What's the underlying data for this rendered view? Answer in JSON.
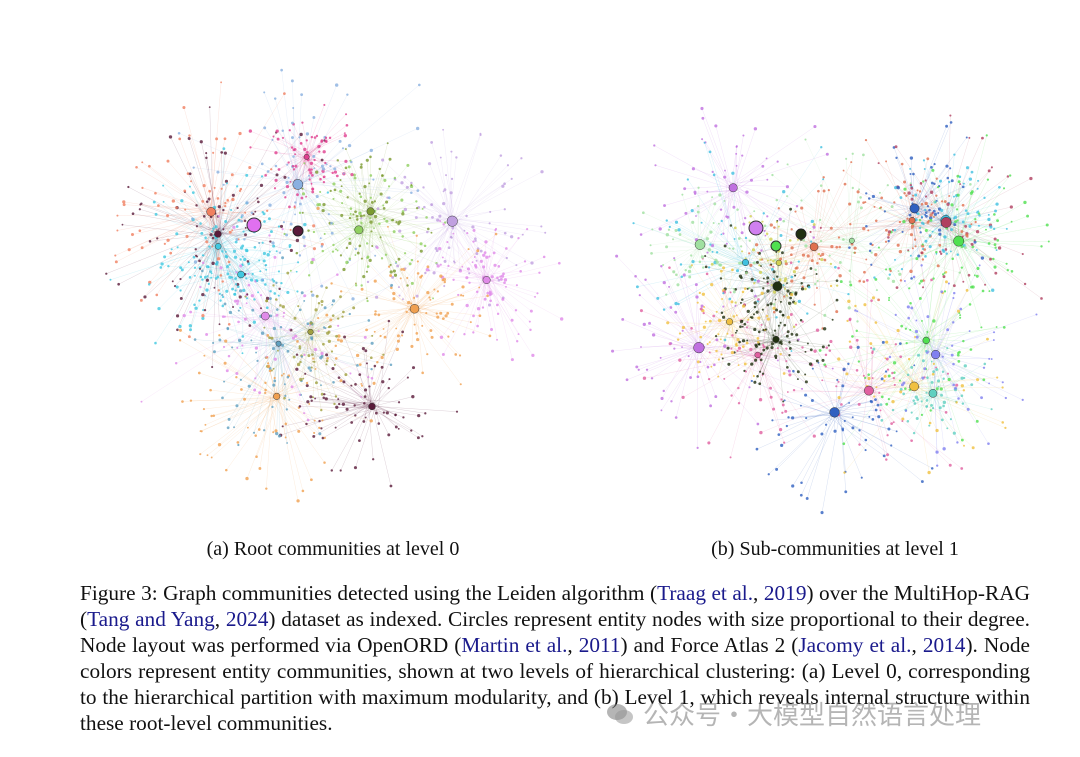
{
  "figure": {
    "subfigures": [
      {
        "caption": "(a) Root communities at level 0"
      },
      {
        "caption": "(b) Sub-communities at level 1"
      }
    ],
    "caption": {
      "parts": [
        {
          "text": "Figure 3: Graph communities detected using the Leiden algorithm ("
        },
        {
          "text": "Traag et al.",
          "link": true
        },
        {
          "text": ", "
        },
        {
          "text": "2019",
          "link": true
        },
        {
          "text": ") over the MultiHop-RAG ("
        },
        {
          "text": "Tang and Yang",
          "link": true
        },
        {
          "text": ", "
        },
        {
          "text": "2024",
          "link": true
        },
        {
          "text": ") dataset as indexed. Circles represent entity nodes with size proportional to their degree.  Node layout was performed via OpenORD ("
        },
        {
          "text": "Martin et al.",
          "link": true
        },
        {
          "text": ", "
        },
        {
          "text": "2011",
          "link": true
        },
        {
          "text": ") and Force Atlas 2 ("
        },
        {
          "text": "Jacomy et al.",
          "link": true
        },
        {
          "text": ", "
        },
        {
          "text": "2014",
          "link": true
        },
        {
          "text": "). Node colors represent entity communities, shown at two levels of hierarchical clustering: (a) Level 0, corresponding to the hierarchical partition with maximum modularity, and (b) Level 1, which reveals internal structure within these root-level communities."
        }
      ]
    }
  },
  "watermark": "公众号・大模型自然语言处理"
}
